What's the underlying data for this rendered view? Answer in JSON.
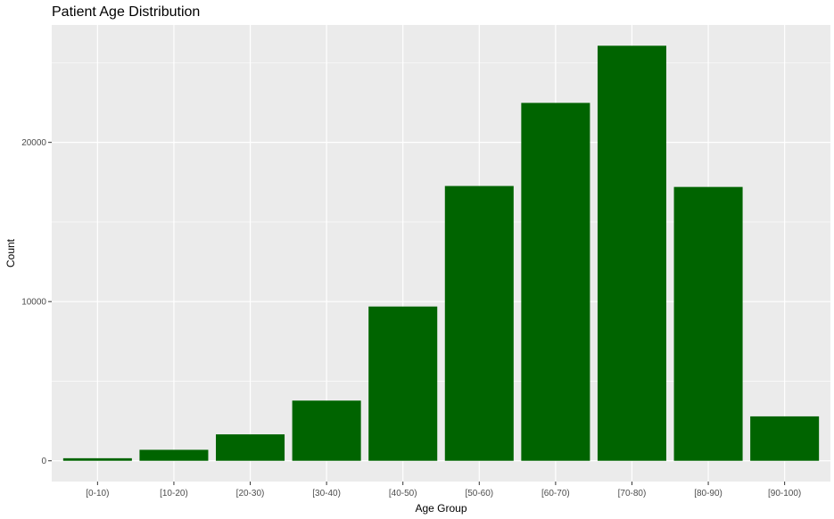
{
  "chart_data": {
    "type": "bar",
    "title": "Patient Age Distribution",
    "xlabel": "Age Group",
    "ylabel": "Count",
    "categories": [
      "[0-10)",
      "[10-20)",
      "[20-30)",
      "[30-40)",
      "[40-50)",
      "[50-60)",
      "[60-70)",
      "[70-80)",
      "[80-90)",
      "[90-100)"
    ],
    "values": [
      160,
      690,
      1660,
      3780,
      9690,
      17260,
      22480,
      26070,
      17200,
      2790
    ],
    "ylim": [
      -1304,
      27374
    ],
    "yticks": [
      0,
      10000,
      20000
    ],
    "ytick_labels": [
      "0",
      "10000",
      "20000"
    ],
    "grid": true,
    "legend": "none",
    "colors": {
      "bar": "#006400",
      "panel": "#ebebeb",
      "grid": "#ffffff",
      "text": "#000000",
      "tick_text": "#4d4d4d",
      "tick_mark": "#333333"
    }
  }
}
